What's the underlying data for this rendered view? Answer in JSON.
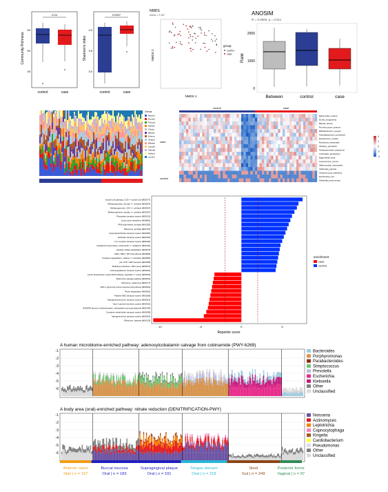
{
  "boxplots": {
    "left": {
      "ylabel": "Community Richness",
      "sig": "0.04",
      "categories": [
        "control",
        "case"
      ],
      "yticks": [
        "40",
        "50",
        "60"
      ]
    },
    "right": {
      "ylabel": "Shannon's index",
      "sig": "0.0007",
      "categories": [
        "control",
        "case"
      ],
      "yticks": [
        "3.0",
        "3.5",
        "4.0"
      ]
    }
  },
  "nmds": {
    "title": "NMDS",
    "stress": "stress = 0.167",
    "xlabel": "NMDS 1",
    "ylabel": "NMDS 2",
    "legend_title": "group",
    "legend": [
      "control",
      "case"
    ],
    "xticks": [
      "-0.4",
      "-0.2",
      "0.0",
      "0.2",
      "0.4"
    ],
    "yticks": [
      "0.4",
      "0.2",
      "0.0",
      "-0.2",
      "-0.4"
    ]
  },
  "anosim": {
    "title": "ANOSIM",
    "subtitle": "R = 0.0606, p = 0.011",
    "ylabel": "Rank",
    "categories": [
      "Between",
      "control",
      "case"
    ],
    "yticks": [
      "0",
      "1000",
      "2000"
    ],
    "colors": [
      "#bdbdbd",
      "#2c3e94",
      "#e31a1c"
    ]
  },
  "taxa_bar": {
    "legend": [
      "Bacteroides",
      "Escherichia",
      "Prevotella",
      "Klebsiella",
      "Others",
      "Blautia",
      "Enterococcus",
      "Streptococcus",
      "Bifidobacterium",
      "Lactobacillus",
      "Faecalibacterium",
      "Veillonella",
      "Lachnospira"
    ],
    "legend_title": "Genus",
    "group_legend": [
      "control",
      "case"
    ]
  },
  "heatmap": {
    "col_groups": [
      "control",
      "case"
    ],
    "row_group_labels": [
      "case",
      "control"
    ],
    "rows": [
      "Bacteroides_ovatus",
      "Dorea_longicatena",
      "Blautia_obeum",
      "Ruminococcus_gnavus",
      "Bifidobacterium_longum",
      "Faecalibacterium_prausnitzii",
      "Eubacterium_rectale",
      "Roseburia_intestinalis",
      "Alistipes_putredinis",
      "Parabacteroides_distasonis",
      "Collinsella_aerofaciens",
      "Eggerthella_lenta",
      "Coprococcus_comes",
      "Akkermansia_muciniphila",
      "Veillonella_parvula",
      "Streptococcus_salivarius",
      "Escherichia_coli",
      "Klebsiella_pneumoniae"
    ],
    "scale": [
      "4",
      "2",
      "0",
      "-2",
      "-4"
    ]
  },
  "lda": {
    "xlabel": "Reporter score",
    "xticks": [
      "-10",
      "-5",
      "0",
      "5"
    ],
    "legend_title": "enrichment",
    "legend": [
      "case",
      "control"
    ],
    "labels": [
      "Acetyl-CoA pathway, CO2 => acetyl-CoA [M00377]",
      "Methanogenesis, formate => methane [M00567]",
      "Methanogenesis, CO2 => methane [M00567]",
      "Methanogenesis, acetate => methane [M00357]",
      "Phosphate transport system [M00222]",
      "Lipoic acid metabolism [M00881]",
      "RNA polymerase, archaea [M00183]",
      "Ribosome, archaea [M00179]",
      "Lipopolysaccharide transport system [M00250]",
      "Sulfonate transport system [M00436]",
      "Iron complex transport system [M00240]",
      "Cobalamin biosynthesis, cobinamide => cobalamin [M00122]",
      "Heparan sulfate degradation [M00078]",
      "HMG / MEV / IPP biosynthesis [M00095]",
      "Trehalose degradation, maltose => trehalose [M00565]",
      "pH / ATP / ADP transport [M00258]",
      "Multidrug resistance, efflux pump [M00647]",
      "Lactose/galactose transport system [M00491]",
      "Lysine biosynthesis, acetyl-DAP pathway, aspartate => lysine [M00525]",
      "Methionine salvage pathway [M00034]",
      "Ribosome, eukaryotes [M00177]",
      "ADP-L-glycero-D-manno-heptose biosynthesis [M00064]",
      "Pectin degradation [M00081]",
      "Putative ABC transport system [M00258]",
      "Manganese/zinc/iron transport system [M00319]",
      "Type II general secretion system [M00331]",
      "NAD(P)H:quinone oxidoreductase, chloroplasts and cyanobacteria [M00145]",
      "Complete nitrate/nitrite transport system [M00438]",
      "Manganese/iron transport system [M00316]",
      "Ribosome, bacteria [M00178]"
    ],
    "values": [
      7.5,
      7.0,
      6.8,
      6.5,
      6.2,
      6.0,
      5.8,
      5.6,
      5.4,
      5.2,
      5.0,
      4.8,
      4.7,
      4.6,
      4.5,
      4.4,
      4.3,
      4.2,
      -3.3,
      -3.4,
      -3.5,
      -3.6,
      -3.7,
      -3.8,
      -3.9,
      -4.0,
      -4.1,
      -4.3,
      -4.6,
      -10.8
    ],
    "xlim": [
      -11,
      8
    ]
  },
  "strat1": {
    "title": "A human microbiome-enriched pathway: adenosylcobalamin salvage from cobinamide (PWY-6269)",
    "yticks": [
      "-1",
      "-2",
      "-3",
      "-4",
      "-5",
      "-6"
    ],
    "legend": [
      "Bacteroides",
      "Porphyromonas",
      "Parabacteroides",
      "Streptococcus",
      "Prevotella",
      "Escherichia",
      "Klebsiella",
      "Other",
      "Unclassified"
    ],
    "colors": [
      "#9ecae1",
      "#d6934a",
      "#8c2d04",
      "#74c476",
      "#bcbddc",
      "#e7298a",
      "#c51b7d",
      "#7f7f7f",
      "#d9d9d9"
    ]
  },
  "strat2": {
    "title": "A body area (oral)-enriched pathway: nitrate reduction (DENITRIFICATION-PWY)",
    "yticks": [
      "-1",
      "-2",
      "-3",
      "-4",
      "-5",
      "-6"
    ],
    "legend": [
      "Neisseria",
      "Actinomyces",
      "Leptotrichia",
      "Capnocytophaga",
      "Kingella",
      "Cardiobacterium",
      "Pseudomonas",
      "Other",
      "Unclassified"
    ],
    "colors": [
      "#6a51a3",
      "#e41a1c",
      "#ff7f00",
      "#f781bf",
      "#a65628",
      "#ffff33",
      "#dadaeb",
      "#7f7f7f",
      "#d9d9d9"
    ]
  },
  "body_sites": [
    {
      "name": "Anterior nares",
      "sub": "Skin | n = 157",
      "color": "#f39c12"
    },
    {
      "name": "Buccal mucosa",
      "sub": "Oral | n = 183",
      "color": "#1f1fbf"
    },
    {
      "name": "Supragingival plaque",
      "sub": "Oral | n = 191",
      "color": "#1f1fbf"
    },
    {
      "name": "Tongue dorsum",
      "sub": "Oral | n = 218",
      "color": "#29b6d8"
    },
    {
      "name": "Stool",
      "sub": "Gut | n = 249",
      "color": "#8b4513"
    },
    {
      "name": "Posterior fornix",
      "sub": "Vaginal | n = 97",
      "color": "#2e8b57"
    }
  ]
}
